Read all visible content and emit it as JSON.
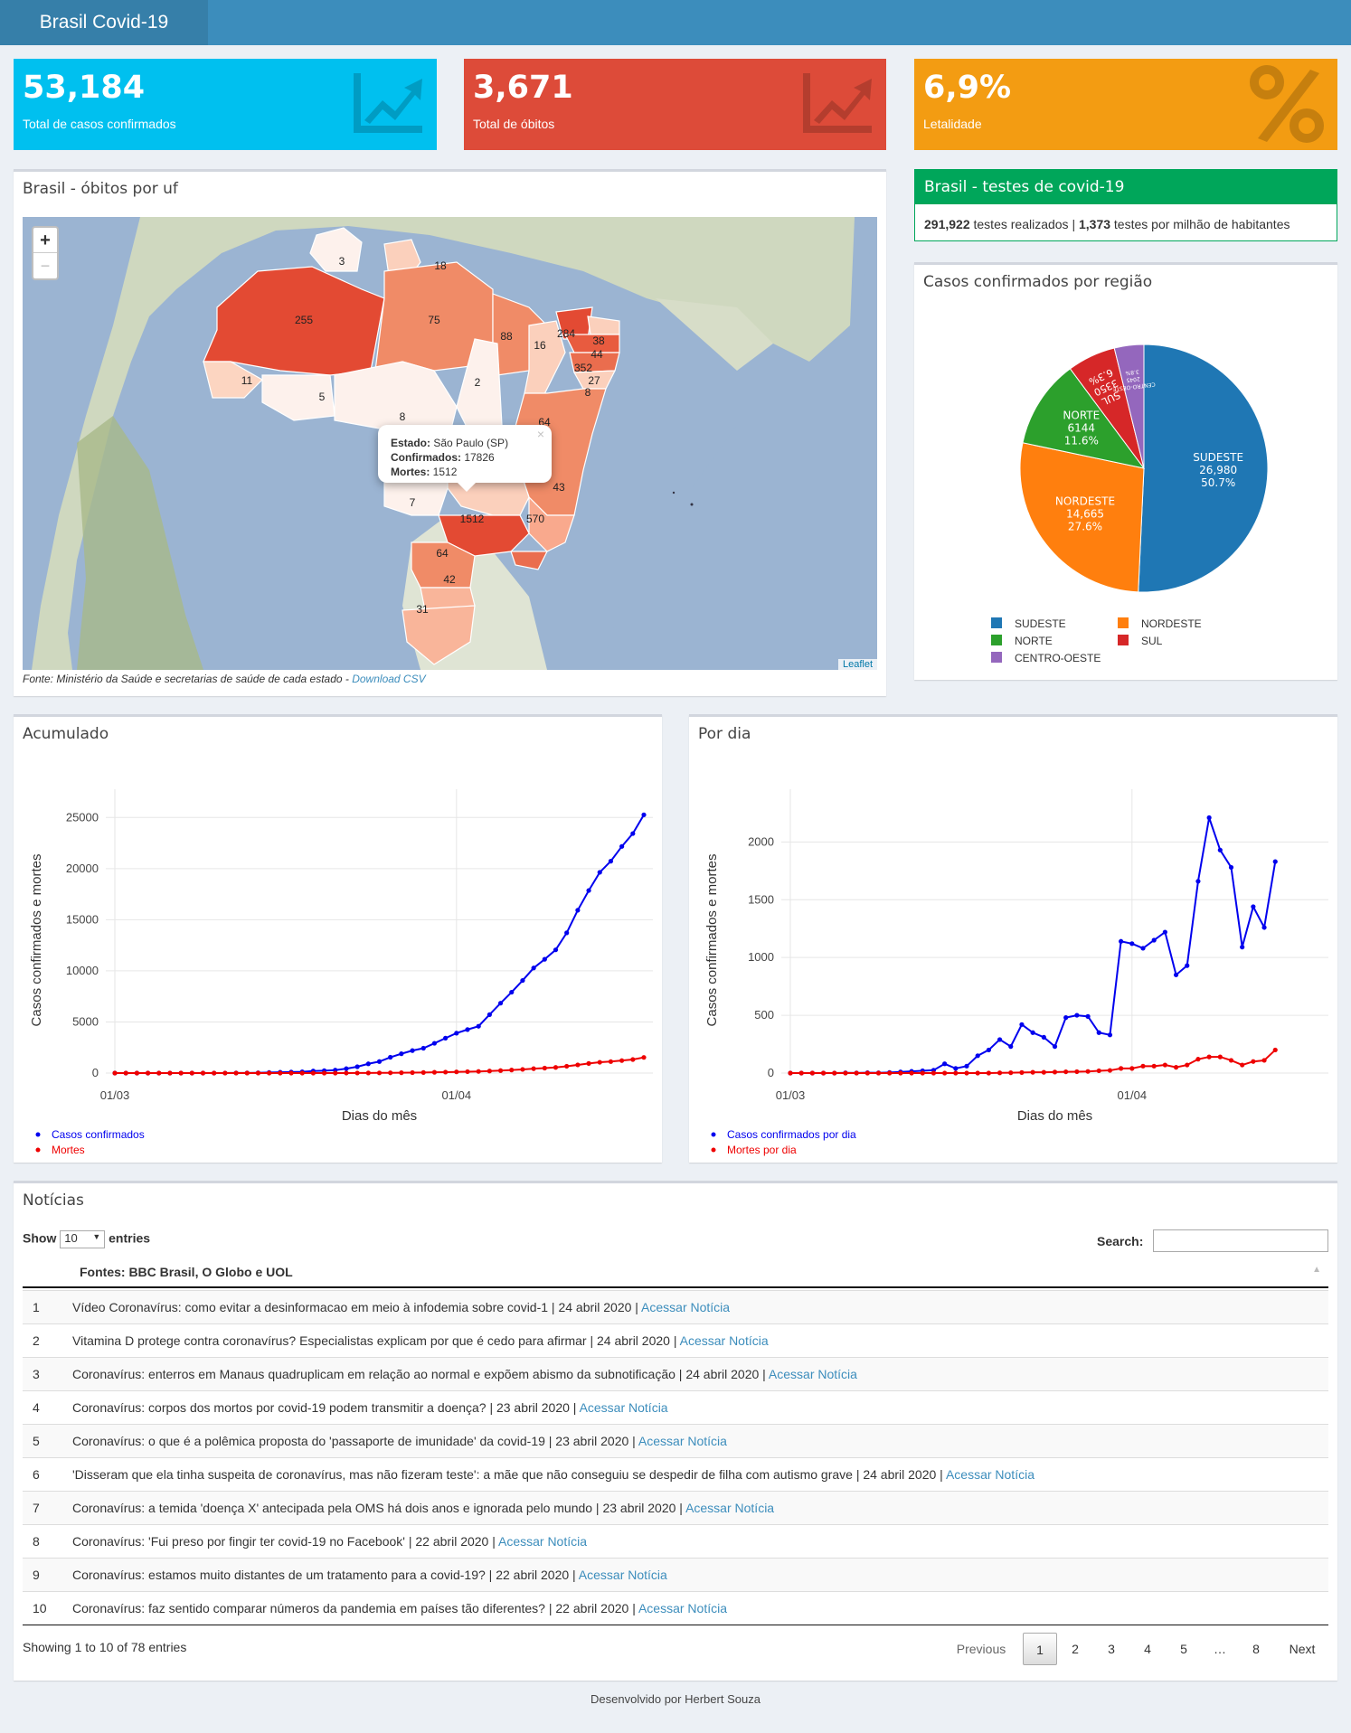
{
  "header": {
    "title": "Brasil Covid-19"
  },
  "kpis": {
    "confirmed": {
      "value": "53,184",
      "label": "Total de casos confirmados",
      "color": "#00c0ef"
    },
    "deaths": {
      "value": "3,671",
      "label": "Total de óbitos",
      "color": "#dd4b39"
    },
    "lethality": {
      "value": "6,9%",
      "label": "Letalidade",
      "color": "#f39c12"
    }
  },
  "map_panel": {
    "title": "Brasil - óbitos por uf",
    "zoom_in": "+",
    "zoom_out": "−",
    "attribution": "Leaflet",
    "source_text": "Fonte: Ministério da Saúde e secretarias de saúde de cada estado - ",
    "source_link": "Download CSV",
    "popup": {
      "estado_label": "Estado:",
      "estado_value": " São Paulo (SP)",
      "conf_label": "Confirmados:",
      "conf_value": " 17826",
      "mortes_label": "Mortes:",
      "mortes_value": " 1512",
      "close": "×"
    },
    "state_labels": [
      "3",
      "18",
      "255",
      "75",
      "88",
      "16",
      "284",
      "38",
      "44",
      "11",
      "5",
      "2",
      "352",
      "27",
      "8",
      "8",
      "64",
      "43",
      "7",
      "1512",
      "570",
      "64",
      "42",
      "31"
    ]
  },
  "tests_panel": {
    "title": "Brasil - testes de covid-19",
    "tests_value": "291,922",
    "tests_text": " testes realizados | ",
    "per_million_value": "1,373",
    "per_million_text": " testes por milhão de habitantes",
    "header_color": "#00a65a"
  },
  "region_panel": {
    "title": "Casos confirmados por região"
  },
  "acumulado_panel": {
    "title": "Acumulado"
  },
  "pordia_panel": {
    "title": "Por dia"
  },
  "chart_data": [
    {
      "type": "pie",
      "title": "Casos confirmados por região",
      "labels": [
        "SUDESTE",
        "NORDESTE",
        "NORTE",
        "SUL",
        "CENTRO-OESTE"
      ],
      "values": [
        26980,
        14665,
        6144,
        3350,
        2045
      ],
      "percent_labels": [
        "50.7%",
        "27.6%",
        "11.6%",
        "6.3%",
        "3.8%"
      ],
      "value_labels": [
        "26,980",
        "14,665",
        "6144",
        "3350",
        "2045"
      ],
      "colors": [
        "#1f77b4",
        "#ff7f0e",
        "#2ca02c",
        "#d62728",
        "#9467bd"
      ],
      "legend_placement": "bottom"
    },
    {
      "type": "line",
      "title": "Acumulado",
      "xlabel": "Dias do mês",
      "ylabel": "Casos confirmados e mortes",
      "x_ticks": [
        "01/03",
        "01/04"
      ],
      "y_ticks": [
        "0",
        "5000",
        "10000",
        "15000",
        "20000",
        "25000"
      ],
      "ylim": [
        0,
        26000
      ],
      "series": [
        {
          "name": "Casos confirmados",
          "color": "#0000ee",
          "values": [
            0,
            0,
            0,
            0,
            0,
            0,
            0,
            1,
            2,
            2,
            5,
            8,
            13,
            25,
            52,
            77,
            98,
            121,
            200,
            234,
            291,
            428,
            621,
            904,
            1128,
            1546,
            1891,
            2201,
            2433,
            2915,
            3417,
            3904,
            4256,
            4579,
            5717,
            6836,
            7910,
            9056,
            10278,
            11130,
            12056,
            13717,
            15927,
            17857,
            19638,
            20727,
            22169,
            23430,
            25262
          ]
        },
        {
          "name": "Mortes",
          "color": "#ee0000",
          "values": [
            0,
            0,
            0,
            0,
            0,
            0,
            0,
            0,
            0,
            0,
            0,
            0,
            0,
            0,
            0,
            0,
            0,
            0,
            0,
            0,
            1,
            3,
            6,
            11,
            18,
            25,
            34,
            46,
            57,
            77,
            92,
            114,
            136,
            159,
            201,
            241,
            299,
            359,
            432,
            486,
            553,
            667,
            800,
            941,
            1056,
            1124,
            1223,
            1328,
            1532
          ]
        }
      ]
    },
    {
      "type": "line",
      "title": "Por dia",
      "xlabel": "Dias do mês",
      "ylabel": "Casos confirmados e mortes",
      "x_ticks": [
        "01/03",
        "01/04"
      ],
      "y_ticks": [
        "0",
        "500",
        "1000",
        "1500",
        "2000"
      ],
      "ylim": [
        0,
        2300
      ],
      "series": [
        {
          "name": "Casos confirmados por dia",
          "color": "#0000ee",
          "values": [
            0,
            0,
            0,
            0,
            0,
            2,
            1,
            3,
            2,
            5,
            10,
            15,
            20,
            25,
            80,
            40,
            60,
            150,
            200,
            290,
            230,
            420,
            350,
            310,
            230,
            480,
            500,
            490,
            350,
            330,
            1140,
            1120,
            1080,
            1150,
            1220,
            850,
            930,
            1660,
            2210,
            1930,
            1780,
            1090,
            1440,
            1260,
            1830
          ]
        },
        {
          "name": "Mortes por dia",
          "color": "#ee0000",
          "values": [
            0,
            0,
            0,
            0,
            0,
            0,
            0,
            0,
            0,
            0,
            0,
            0,
            0,
            0,
            0,
            0,
            0,
            0,
            0,
            2,
            3,
            5,
            7,
            7,
            9,
            11,
            12,
            14,
            20,
            23,
            40,
            40,
            60,
            60,
            70,
            50,
            70,
            120,
            140,
            140,
            110,
            70,
            100,
            110,
            200
          ]
        }
      ]
    }
  ],
  "news": {
    "title": "Notícias",
    "show": "Show",
    "entries_value": "10",
    "entries": "entries",
    "search_label": "Search:",
    "column_header": "Fontes: BBC Brasil, O Globo e UOL",
    "link_text": "Acessar Notícia",
    "rows": [
      {
        "n": "1",
        "text": "Vídeo Coronavírus: como evitar a desinformacao em meio à infodemia sobre covid-1 | 24 abril 2020 | "
      },
      {
        "n": "2",
        "text": "Vitamina D protege contra coronavírus? Especialistas explicam por que é cedo para afirmar | 24 abril 2020 | "
      },
      {
        "n": "3",
        "text": "Coronavírus: enterros em Manaus quadruplicam em relação ao normal e expõem abismo da subnotificação | 24 abril 2020 | "
      },
      {
        "n": "4",
        "text": "Coronavírus: corpos dos mortos por covid-19 podem transmitir a doença? | 23 abril 2020 | "
      },
      {
        "n": "5",
        "text": "Coronavírus: o que é a polêmica proposta do 'passaporte de imunidade' da covid-19 | 23 abril 2020 | "
      },
      {
        "n": "6",
        "text": "'Disseram que ela tinha suspeita de coronavírus, mas não fizeram teste': a mãe que não conseguiu se despedir de filha com autismo grave | 24 abril 2020 | "
      },
      {
        "n": "7",
        "text": "Coronavírus: a temida 'doença X' antecipada pela OMS há dois anos e ignorada pelo mundo | 23 abril 2020 | "
      },
      {
        "n": "8",
        "text": "Coronavírus: 'Fui preso por fingir ter covid-19 no Facebook' | 22 abril 2020 | "
      },
      {
        "n": "9",
        "text": "Coronavírus: estamos muito distantes de um tratamento para a covid-19? | 22 abril 2020 | "
      },
      {
        "n": "10",
        "text": "Coronavírus: faz sentido comparar números da pandemia em países tão diferentes? | 22 abril 2020 | "
      }
    ],
    "info": "Showing 1 to 10 of 78 entries",
    "pagination": [
      "Previous",
      "1",
      "2",
      "3",
      "4",
      "5",
      "…",
      "8",
      "Next"
    ]
  },
  "footer": {
    "text": "Desenvolvido por Herbert Souza"
  }
}
